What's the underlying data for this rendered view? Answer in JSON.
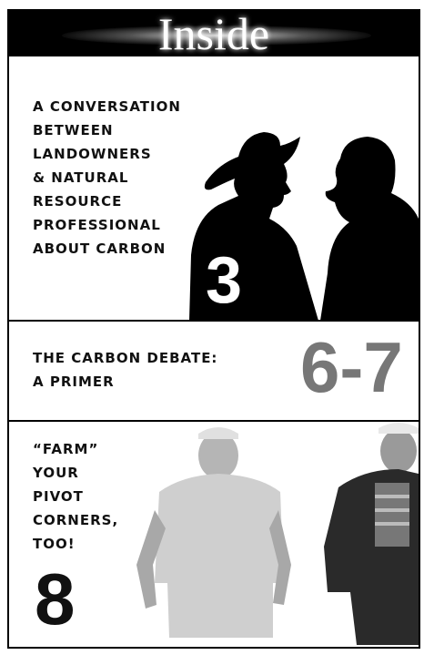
{
  "header": {
    "title": "Inside"
  },
  "sections": [
    {
      "lines": [
        "A CONVERSATION",
        "BETWEEN",
        "LANDOWNERS",
        "& NATURAL",
        "RESOURCE",
        "PROFESSIONAL",
        "ABOUT CARBON"
      ],
      "page": "3"
    },
    {
      "lines": [
        "THE CARBON DEBATE:",
        "A PRIMER"
      ],
      "page": "6-7"
    },
    {
      "lines": [
        "“FARM”",
        "YOUR",
        "PIVOT",
        "CORNERS,",
        "TOO!"
      ],
      "page": "8"
    }
  ]
}
